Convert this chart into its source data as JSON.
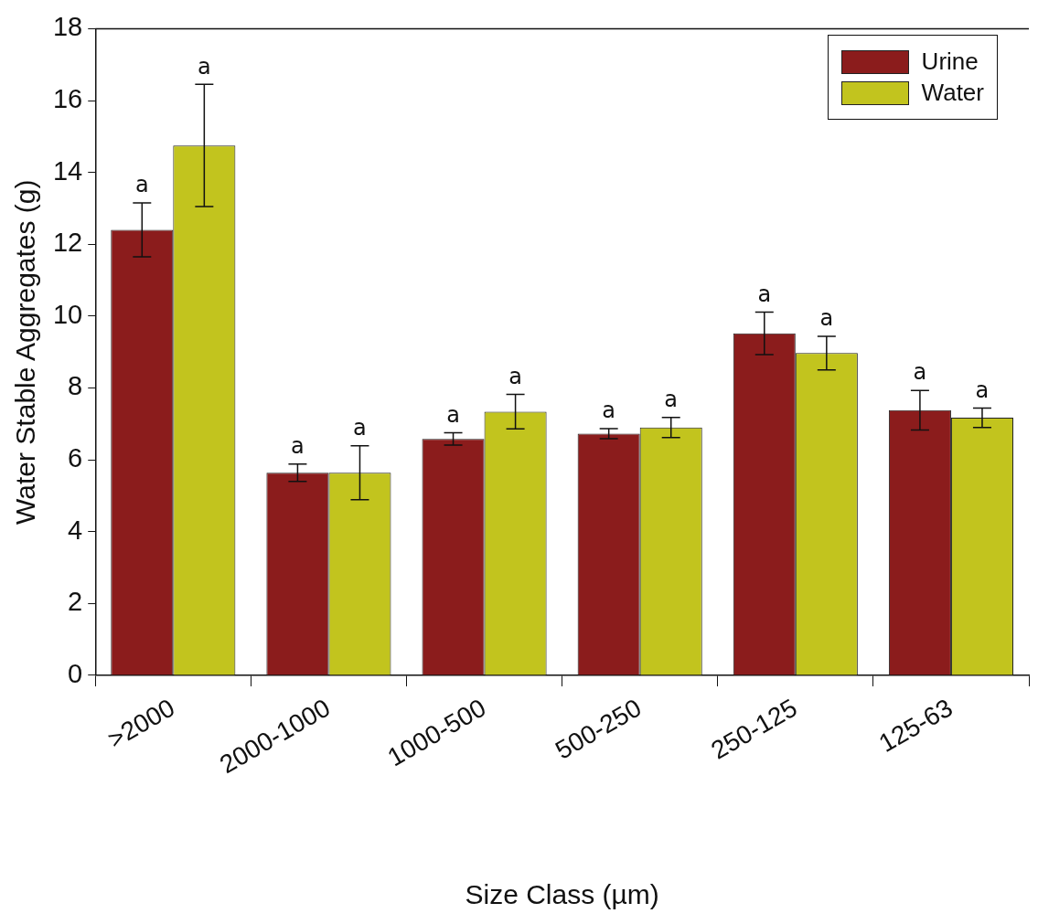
{
  "chart_data": {
    "type": "bar",
    "xlabel": "Size Class (µm)",
    "ylabel": "Water Stable Aggregates (g)",
    "categories": [
      ">2000",
      "2000-1000",
      "1000-500",
      "500-250",
      "250-125",
      "125-63"
    ],
    "series": [
      {
        "name": "Urine",
        "color": "#8b1c1c",
        "values": [
          12.4,
          5.64,
          6.58,
          6.73,
          9.52,
          7.38
        ],
        "errors": [
          0.75,
          0.24,
          0.17,
          0.14,
          0.59,
          0.55
        ]
      },
      {
        "name": "Water",
        "color": "#c2c41e",
        "values": [
          14.75,
          5.64,
          7.34,
          6.9,
          8.97,
          7.17
        ],
        "errors": [
          1.7,
          0.75,
          0.48,
          0.28,
          0.47,
          0.27
        ]
      }
    ],
    "ylim": [
      0,
      18
    ],
    "yticks": [
      0,
      2,
      4,
      6,
      8,
      10,
      12,
      14,
      16,
      18
    ],
    "grid": false,
    "legend": "top right",
    "annotations": [
      "a",
      "a",
      "a",
      "a",
      "a",
      "a",
      "a",
      "a",
      "a",
      "a",
      "a",
      "a"
    ]
  }
}
